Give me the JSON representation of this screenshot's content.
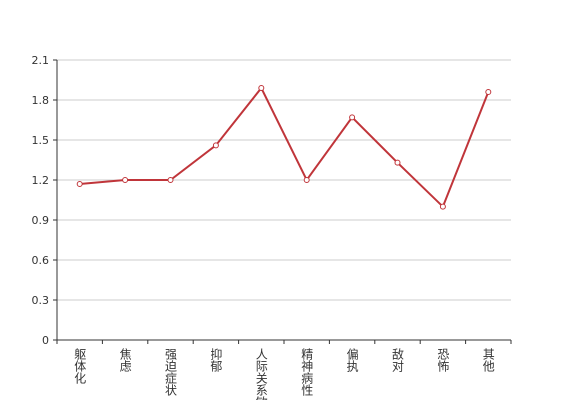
{
  "chart_data": {
    "type": "line",
    "categories": [
      "躯体化",
      "焦虑",
      "强迫症状",
      "抑郁",
      "人际关系敏感",
      "精神病性",
      "偏执",
      "敌对",
      "恐怖",
      "其他"
    ],
    "series": [
      {
        "color": "#c0353a",
        "values": [
          1.17,
          1.2,
          1.2,
          1.46,
          1.89,
          1.2,
          1.67,
          1.33,
          1.0,
          1.86
        ]
      }
    ],
    "ylim": [
      0,
      2.1
    ],
    "yticks": [
      0,
      0.3,
      0.6,
      0.9,
      1.2,
      1.5,
      1.8,
      2.1
    ],
    "grid": true
  }
}
